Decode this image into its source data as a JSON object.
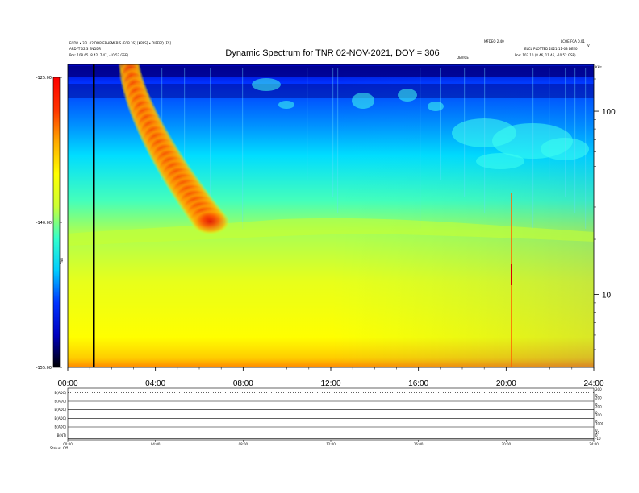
{
  "header": {
    "left_line1": "ECDR • 32L.02 DDR EPHEMERIS (FCB 3S) [KRFS] • DIFFEQ [FS]",
    "left_line2": "ARDFT 02.3 ENDDR",
    "left_line3": "Pos: 108.65 (8.42, 7.47, -10.52 GSE)",
    "right_line1": "MFDEO 2.40",
    "right_line2": "LCOE FCA 0.01",
    "right_line3": "ELCL PLOTTED 2021-11-03 DEE0",
    "right_line4": "Pos: 107.10 (8.46, 11.46, -10.52 GSE)",
    "mid_small": "DEVICE",
    "far_right": "KHz",
    "corner": "V"
  },
  "chart_data": {
    "type": "heatmap",
    "title": "Dynamic Spectrum for TNR 02-NOV-2021, DOY = 306",
    "x_ticks": [
      "00:00",
      "04:00",
      "08:00",
      "12:00",
      "16:00",
      "20:00",
      "24:00"
    ],
    "x_range": [
      0,
      24
    ],
    "y_scale": "log",
    "y_ticks_right": [
      "100",
      "10"
    ],
    "y_range": [
      4,
      180
    ],
    "colorbar": {
      "label": "TNR",
      "ticks": [
        "-125.00",
        "-140.00",
        "-155.00"
      ],
      "range": [
        -155,
        -125
      ],
      "colors": [
        "#000000",
        "#0000c0",
        "#0033ff",
        "#00ccff",
        "#33ffcc",
        "#ccff33",
        "#ffff00",
        "#ffaa00",
        "#ff3300",
        "#ff0000"
      ]
    },
    "features": [
      {
        "type": "burst",
        "start_hour": 2.8,
        "end_hour": 6.5,
        "start_khz": 180,
        "end_khz": 25
      }
    ]
  },
  "panels": {
    "rows": [
      {
        "label": "B(ADC)",
        "right_ticks": [
          "200",
          "0"
        ]
      },
      {
        "label": "B(ADC)",
        "right_ticks": [
          "200",
          "0"
        ]
      },
      {
        "label": "B(ADC)",
        "right_ticks": [
          "200",
          "0"
        ]
      },
      {
        "label": "B(ADC)",
        "right_ticks": [
          "200",
          "0"
        ]
      },
      {
        "label": "B(ADC)",
        "right_ticks": [
          "1000",
          "0"
        ]
      },
      {
        "label": "B(NT)",
        "right_ticks": [
          "10",
          "0",
          "-10"
        ]
      }
    ],
    "x_ticks": [
      "00:00",
      "04:00",
      "08:00",
      "12:00",
      "16:00",
      "20:00",
      "24:00"
    ],
    "footer_label": "Status",
    "footer_value": "Off"
  }
}
